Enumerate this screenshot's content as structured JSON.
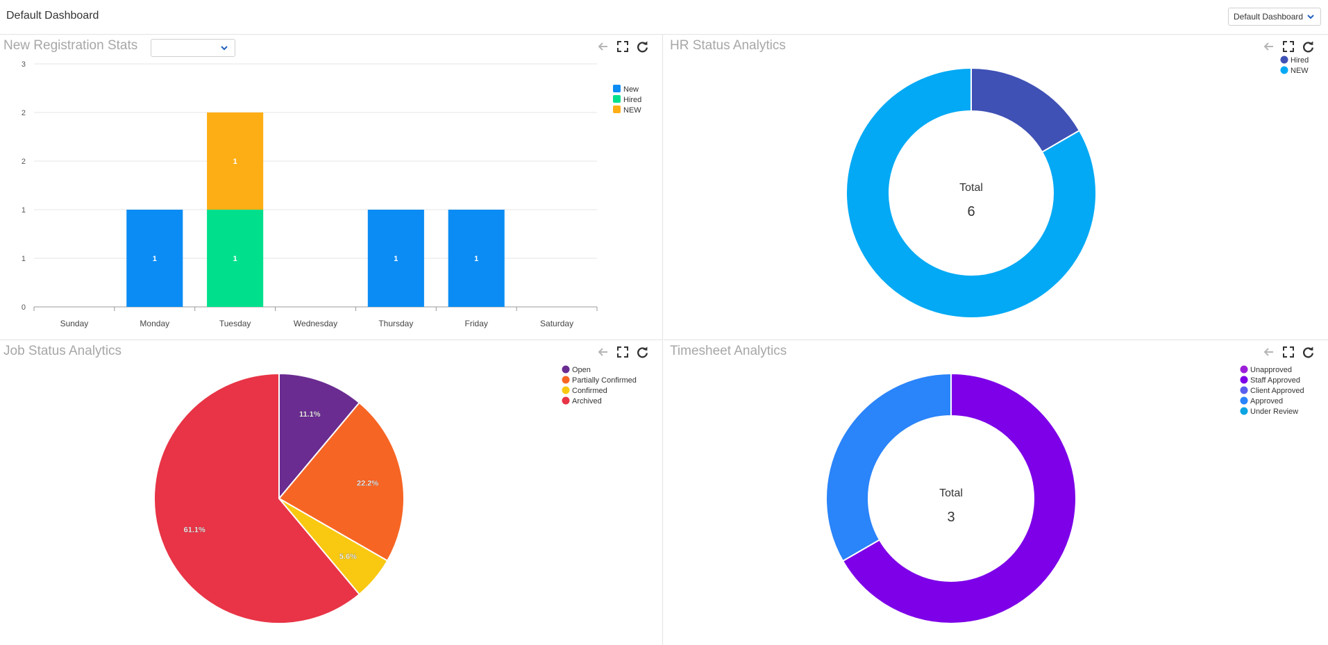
{
  "header": {
    "title": "Default Dashboard",
    "dashboard_select": {
      "value": "Default Dashboard"
    }
  },
  "panels": {
    "registration": {
      "title": "New Registration Stats",
      "filter_value": ""
    },
    "hr": {
      "title": "HR Status Analytics"
    },
    "job": {
      "title": "Job Status Analytics"
    },
    "timesheet": {
      "title": "Timesheet Analytics"
    }
  },
  "colors": {
    "new": "#0b8cf4",
    "hired": "#00e08c",
    "new_upper": "#feae15",
    "hr_hired": "#3f51b5",
    "hr_new": "#03a9f4",
    "open": "#6a2c91",
    "partially_confirmed": "#f76524",
    "confirmed": "#f9c810",
    "archived": "#e83446",
    "unapproved": "#9c1fd8",
    "staff_approved": "#7d00e8",
    "client_approved": "#5a5fee",
    "approved": "#2a84fa",
    "under_review": "#0ca4e2"
  },
  "chart_data": [
    {
      "id": "registration",
      "type": "bar",
      "stacked": true,
      "title": "New Registration Stats",
      "categories": [
        "Sunday",
        "Monday",
        "Tuesday",
        "Wednesday",
        "Thursday",
        "Friday",
        "Saturday"
      ],
      "series": [
        {
          "name": "New",
          "color": "#0b8cf4",
          "values": [
            0,
            1,
            0,
            0,
            1,
            1,
            0
          ]
        },
        {
          "name": "Hired",
          "color": "#00e08c",
          "values": [
            0,
            0,
            1,
            0,
            0,
            0,
            0
          ]
        },
        {
          "name": "NEW",
          "color": "#feae15",
          "values": [
            0,
            0,
            1,
            0,
            0,
            0,
            0
          ]
        }
      ],
      "ylim": [
        0,
        2.5
      ],
      "y_ticks": [
        0,
        0.5,
        1,
        1.5,
        2,
        2.5
      ],
      "y_tick_labels": [
        "0",
        "1",
        "1",
        "2",
        "2",
        "3"
      ],
      "legend_position": "top-right"
    },
    {
      "id": "hr",
      "type": "pie",
      "donut": true,
      "title": "HR Status Analytics",
      "center_label": "Total",
      "center_value": "6",
      "labels": [
        "Hired",
        "NEW"
      ],
      "values": [
        1,
        5
      ],
      "colors": [
        "#3f51b5",
        "#03a9f4"
      ],
      "legend_position": "top-right"
    },
    {
      "id": "job",
      "type": "pie",
      "title": "Job Status Analytics",
      "labels": [
        "Open",
        "Partially Confirmed",
        "Confirmed",
        "Archived"
      ],
      "values": [
        11.1,
        22.2,
        5.6,
        61.1
      ],
      "value_labels": [
        "11.1%",
        "22.2%",
        "5.6%",
        "61.1%"
      ],
      "colors": [
        "#6a2c91",
        "#f76524",
        "#f9c810",
        "#e83446"
      ],
      "legend_position": "top-right"
    },
    {
      "id": "timesheet",
      "type": "pie",
      "donut": true,
      "title": "Timesheet Analytics",
      "center_label": "Total",
      "center_value": "3",
      "labels": [
        "Unapproved",
        "Staff Approved",
        "Client Approved",
        "Approved",
        "Under Review"
      ],
      "values": [
        0,
        2,
        0,
        1,
        0
      ],
      "colors": [
        "#9c1fd8",
        "#7d00e8",
        "#5a5fee",
        "#2a84fa",
        "#0ca4e2"
      ],
      "legend_position": "top-right"
    }
  ]
}
